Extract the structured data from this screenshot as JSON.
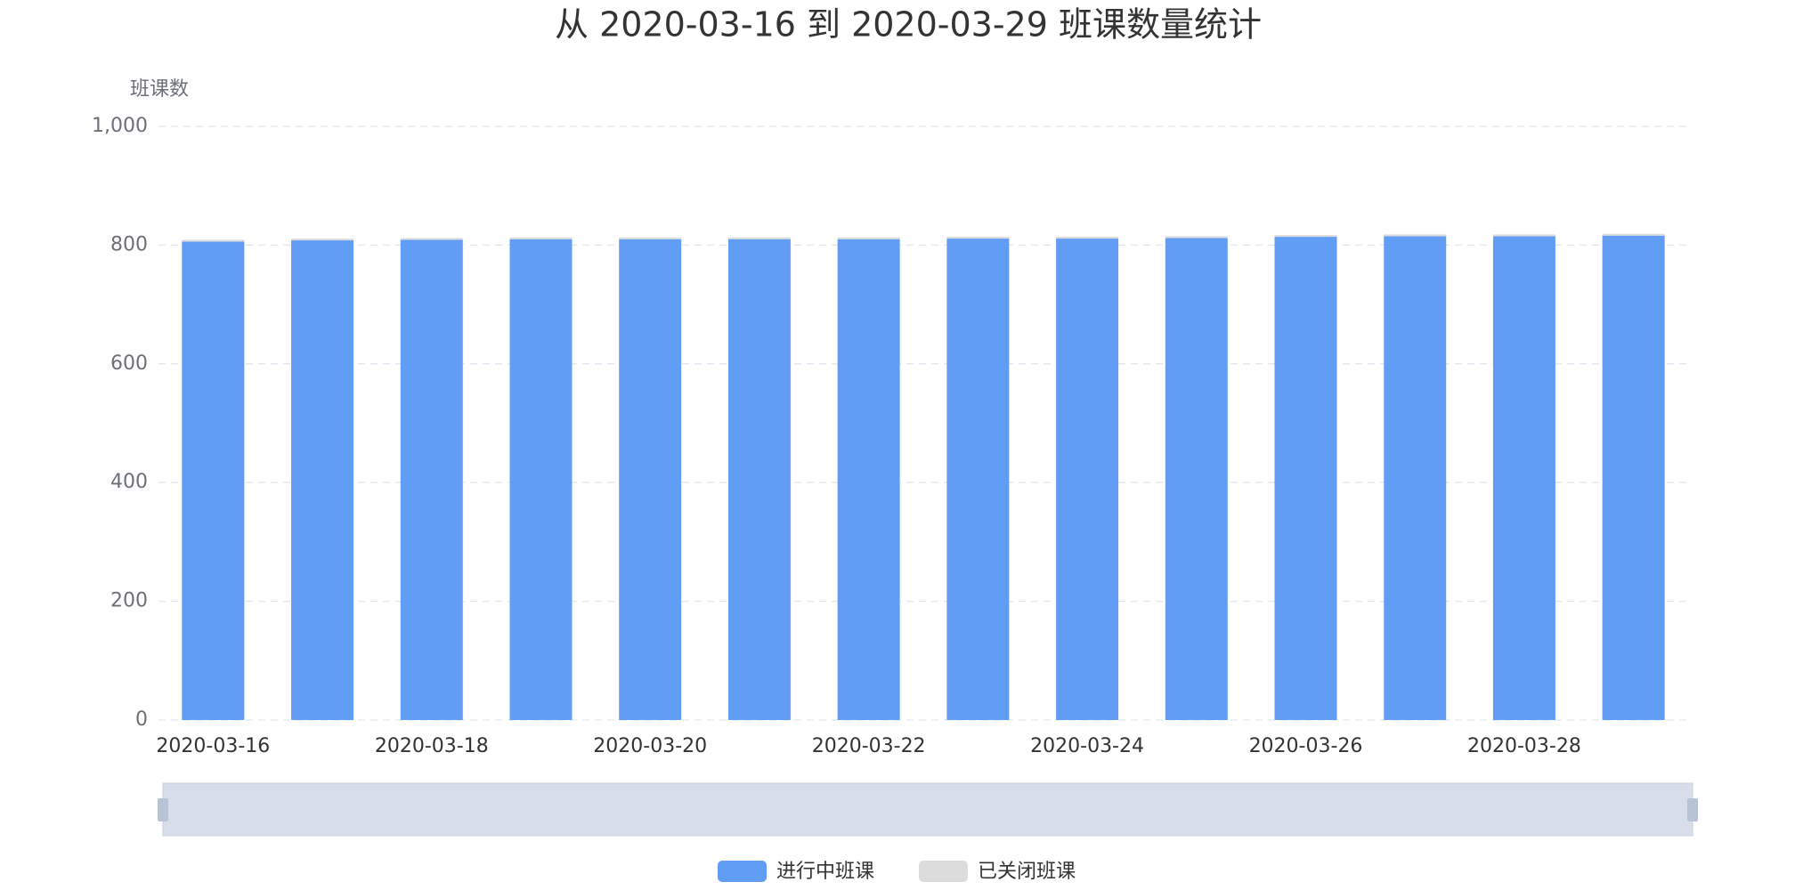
{
  "chart_data": {
    "type": "stacked_bar",
    "title": "从 2020-03-16 到 2020-03-29 班课数量统计",
    "y_label": "班课数",
    "categories": [
      "2020-03-16",
      null,
      "2020-03-18",
      null,
      "2020-03-20",
      null,
      "2020-03-22",
      null,
      "2020-03-24",
      null,
      "2020-03-26",
      null,
      "2020-03-28",
      null
    ],
    "series": [
      {
        "name": "进行中班课",
        "color": "#629df5",
        "values": [
          806,
          808,
          809,
          810,
          810,
          810,
          810,
          811,
          811,
          812,
          814,
          815,
          815,
          816
        ]
      },
      {
        "name": "已关闭班课",
        "color": "#dcdcdc",
        "values": [
          3,
          3,
          3,
          3,
          3,
          3,
          3,
          3,
          3,
          3,
          3,
          3,
          3,
          3
        ]
      }
    ],
    "ylim": [
      0,
      1000
    ],
    "yticks": [
      0,
      200,
      400,
      600,
      800,
      {
        "value": 1000,
        "label": "1,000"
      }
    ],
    "grid": true
  }
}
